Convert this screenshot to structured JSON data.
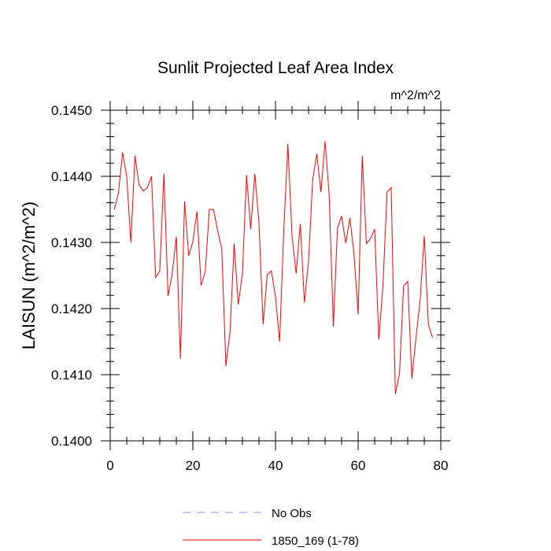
{
  "chart_data": {
    "type": "line",
    "title": "Sunlit Projected Leaf Area Index",
    "units": "m^2/m^2",
    "xlabel": "",
    "ylabel": "LAISUN  (m^2/m^2)",
    "xlim": [
      0,
      80
    ],
    "ylim": [
      0.14,
      0.145
    ],
    "xticks": [
      0,
      20,
      40,
      60,
      80
    ],
    "xtick_labels": [
      "0",
      "20",
      "40",
      "60",
      "80"
    ],
    "yticks": [
      0.14,
      0.141,
      0.142,
      0.143,
      0.144,
      0.145
    ],
    "ytick_labels": [
      "0.1400",
      "0.1410",
      "0.1420",
      "0.1430",
      "0.1440",
      "0.1450"
    ],
    "grid": false,
    "legend": [
      {
        "label": "No Obs",
        "color": "#8888ff",
        "style": "dashed"
      },
      {
        "label": "1850_169 (1-78)",
        "color": "#ff0000",
        "style": "solid"
      }
    ],
    "series": [
      {
        "name": "1850_169 (1-78)",
        "color": "#ff0000",
        "x": [
          1,
          2,
          3,
          4,
          5,
          6,
          7,
          8,
          9,
          10,
          11,
          12,
          13,
          14,
          15,
          16,
          17,
          18,
          19,
          20,
          21,
          22,
          23,
          24,
          25,
          26,
          27,
          28,
          29,
          30,
          31,
          32,
          33,
          34,
          35,
          36,
          37,
          38,
          39,
          40,
          41,
          42,
          43,
          44,
          45,
          46,
          47,
          48,
          49,
          50,
          51,
          52,
          53,
          54,
          55,
          56,
          57,
          58,
          59,
          60,
          61,
          62,
          63,
          64,
          65,
          66,
          67,
          68,
          69,
          70,
          71,
          72,
          73,
          74,
          75,
          76,
          77,
          78
        ],
        "values": [
          0.1435,
          0.14375,
          0.14436,
          0.144,
          0.143,
          0.14431,
          0.14387,
          0.14378,
          0.14383,
          0.144,
          0.14247,
          0.14257,
          0.14404,
          0.14219,
          0.14252,
          0.14309,
          0.14124,
          0.14362,
          0.1428,
          0.14301,
          0.14347,
          0.14235,
          0.14256,
          0.1435,
          0.1435,
          0.14318,
          0.1429,
          0.14113,
          0.14165,
          0.14298,
          0.14206,
          0.14253,
          0.14402,
          0.1432,
          0.14404,
          0.1433,
          0.14176,
          0.14251,
          0.14257,
          0.14218,
          0.1415,
          0.14317,
          0.14449,
          0.1431,
          0.14253,
          0.14328,
          0.14209,
          0.14272,
          0.14395,
          0.14434,
          0.14376,
          0.14453,
          0.14371,
          0.14173,
          0.14322,
          0.1434,
          0.14299,
          0.14337,
          0.14283,
          0.14191,
          0.14431,
          0.14298,
          0.14306,
          0.1432,
          0.14153,
          0.14234,
          0.14376,
          0.14383,
          0.14071,
          0.14101,
          0.14234,
          0.14241,
          0.14094,
          0.14156,
          0.14213,
          0.1431,
          0.14175,
          0.14156
        ]
      }
    ]
  }
}
